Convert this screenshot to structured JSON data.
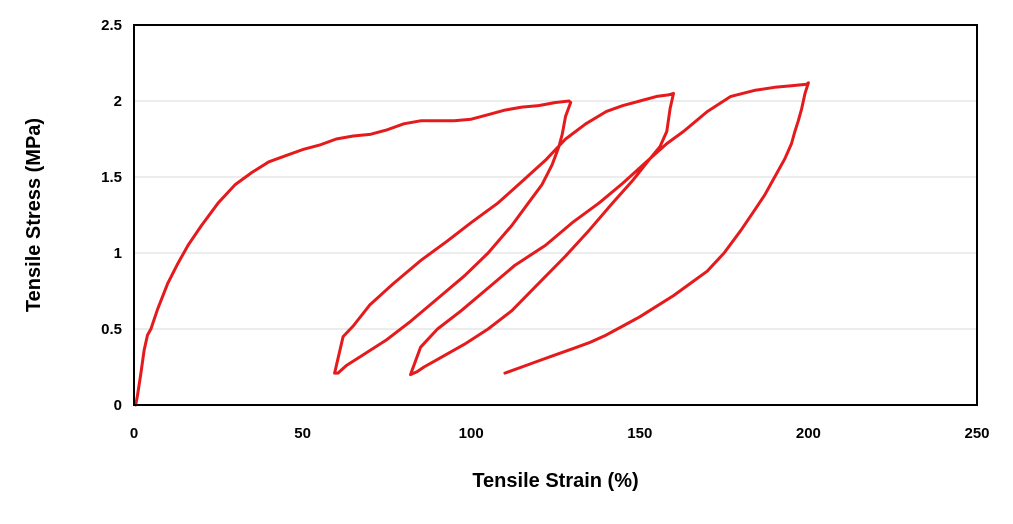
{
  "chart_data": {
    "type": "line",
    "title": "",
    "xlabel": "Tensile Strain (%)",
    "ylabel": "Tensile Stress (MPa)",
    "xlim": [
      0,
      250
    ],
    "ylim": [
      0,
      2.5
    ],
    "xticks": [
      "0",
      "50",
      "100",
      "150",
      "200",
      "250"
    ],
    "yticks": [
      "0",
      "0.5",
      "1",
      "1.5",
      "2",
      "2.5"
    ],
    "grid": "horizontal",
    "legend": "none",
    "series": [
      {
        "color": "#e41a1c",
        "x": [
          0.5,
          1,
          2,
          3,
          4,
          5,
          7,
          10,
          13,
          16,
          20,
          25,
          30,
          35,
          40,
          45,
          50,
          55,
          60,
          65,
          70,
          75,
          80,
          85,
          90,
          95,
          100,
          105,
          110,
          115,
          120,
          125,
          129,
          129.5,
          128,
          127,
          126,
          124,
          121,
          117,
          112,
          105,
          98,
          90,
          82,
          75,
          68,
          63,
          61.5,
          60.5,
          59.5,
          62,
          65,
          70,
          77,
          85,
          93,
          100,
          108,
          115,
          122,
          128,
          134,
          140,
          145,
          150,
          155,
          158.5,
          160,
          159,
          158,
          156,
          153,
          148,
          142,
          135,
          128,
          120,
          112,
          105,
          98,
          90,
          86,
          84,
          83,
          82,
          82.5,
          85,
          90,
          97,
          105,
          113,
          122,
          130,
          138,
          145,
          152,
          158,
          163,
          170,
          177,
          184,
          190,
          195,
          199.5,
          200,
          199,
          198,
          197,
          196,
          195,
          193,
          190,
          187,
          184,
          180,
          175,
          170,
          165,
          160,
          155,
          150,
          145,
          140,
          135,
          130,
          125,
          120,
          115,
          110
        ],
        "y": [
          0,
          0.06,
          0.2,
          0.36,
          0.46,
          0.5,
          0.63,
          0.8,
          0.93,
          1.05,
          1.18,
          1.33,
          1.45,
          1.53,
          1.6,
          1.64,
          1.68,
          1.71,
          1.75,
          1.77,
          1.78,
          1.81,
          1.85,
          1.87,
          1.87,
          1.87,
          1.88,
          1.91,
          1.94,
          1.96,
          1.97,
          1.99,
          2.0,
          1.99,
          1.9,
          1.78,
          1.7,
          1.58,
          1.45,
          1.33,
          1.18,
          1.0,
          0.85,
          0.7,
          0.55,
          0.43,
          0.33,
          0.26,
          0.23,
          0.21,
          0.21,
          0.45,
          0.52,
          0.66,
          0.8,
          0.95,
          1.08,
          1.2,
          1.33,
          1.47,
          1.61,
          1.75,
          1.85,
          1.93,
          1.97,
          2.0,
          2.03,
          2.04,
          2.05,
          1.95,
          1.8,
          1.7,
          1.62,
          1.48,
          1.33,
          1.15,
          0.98,
          0.8,
          0.62,
          0.5,
          0.4,
          0.3,
          0.25,
          0.22,
          0.21,
          0.2,
          0.23,
          0.38,
          0.5,
          0.62,
          0.77,
          0.92,
          1.05,
          1.2,
          1.33,
          1.46,
          1.6,
          1.72,
          1.8,
          1.93,
          2.03,
          2.07,
          2.09,
          2.1,
          2.11,
          2.12,
          2.05,
          1.95,
          1.87,
          1.8,
          1.72,
          1.62,
          1.5,
          1.38,
          1.28,
          1.15,
          1.0,
          0.88,
          0.8,
          0.72,
          0.65,
          0.58,
          0.52,
          0.46,
          0.41,
          0.37,
          0.33,
          0.29,
          0.25,
          0.21
        ]
      }
    ]
  }
}
